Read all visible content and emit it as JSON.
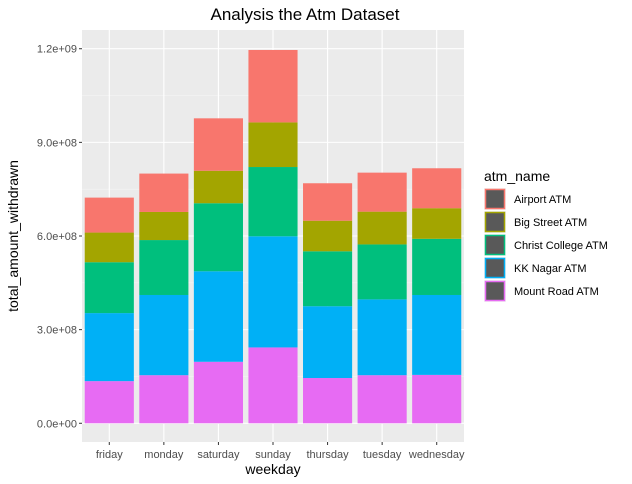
{
  "chart_data": {
    "type": "bar",
    "stacked": true,
    "title": "Analysis the Atm Dataset",
    "xlabel": "weekday",
    "ylabel": "total_amount_withdrawn",
    "categories": [
      "friday",
      "monday",
      "saturday",
      "sunday",
      "thursday",
      "tuesday",
      "wednesday"
    ],
    "ylim": [
      -60000000,
      1260000000
    ],
    "yticks": [
      0,
      300000000,
      600000000,
      900000000,
      1200000000
    ],
    "ytick_labels": [
      "0.0e+00",
      "3.0e+08",
      "6.0e+08",
      "9.0e+08",
      "1.2e+09"
    ],
    "legend_title": "atm_name",
    "legend_position": "right",
    "grid": true,
    "series": [
      {
        "name": "Airport ATM",
        "color": "#F8766D",
        "values": [
          112000000,
          123000000,
          168000000,
          232000000,
          120000000,
          125000000,
          128000000
        ]
      },
      {
        "name": "Big Street ATM",
        "color": "#A3A500",
        "values": [
          95000000,
          90000000,
          104000000,
          143000000,
          98000000,
          105000000,
          98000000
        ]
      },
      {
        "name": "Christ College ATM",
        "color": "#00BF7D",
        "values": [
          163000000,
          176000000,
          218000000,
          222000000,
          176000000,
          176000000,
          180000000
        ]
      },
      {
        "name": "KK Nagar ATM",
        "color": "#00B0F6",
        "values": [
          218000000,
          257000000,
          290000000,
          356000000,
          230000000,
          243000000,
          256000000
        ]
      },
      {
        "name": "Mount Road ATM",
        "color": "#E76BF3",
        "values": [
          135000000,
          154000000,
          197000000,
          243000000,
          145000000,
          154000000,
          155000000
        ]
      }
    ]
  }
}
